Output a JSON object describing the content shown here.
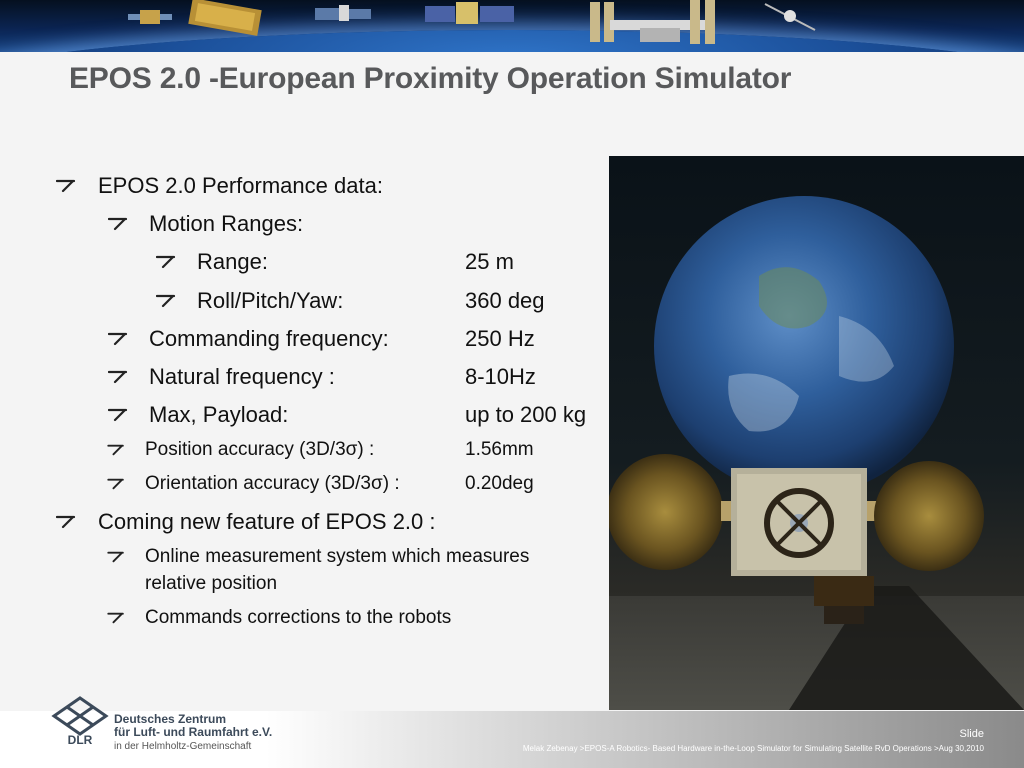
{
  "slide": {
    "title": "EPOS 2.0 -European Proximity Operation Simulator"
  },
  "bullets": {
    "performance": "EPOS 2.0 Performance data:",
    "motion_ranges": "Motion Ranges:",
    "range_label": "Range:",
    "range_value": "25 m",
    "rpy_label": "Roll/Pitch/Yaw:",
    "rpy_value": "360 deg",
    "cmd_freq_label": "Commanding frequency:",
    "cmd_freq_value": "250 Hz",
    "nat_freq_label": "Natural frequency :",
    "nat_freq_value": "8-10Hz",
    "payload_label": "Max, Payload:",
    "payload_value": "up to 200 kg",
    "pos_acc_prefix": "Position accuracy (3D/3",
    "pos_acc_suffix": ") :",
    "pos_acc_value": "1.56mm",
    "ori_acc_prefix": "Orientation accuracy (3D/3",
    "ori_acc_suffix": ") :",
    "ori_acc_value": "0.20deg",
    "sigma": "σ",
    "coming": "Coming new feature of EPOS 2.0 :",
    "online_line1": "Online measurement system which measures",
    "online_line2": "relative position",
    "corrections": "Commands corrections to the robots"
  },
  "footer": {
    "org_line1": "Deutsches Zentrum",
    "org_line2": "für Luft- und Raumfahrt e.V.",
    "org_line3": "in der Helmholtz-Gemeinschaft",
    "logo_text": "DLR",
    "slide_label": "Slide",
    "credit": "Melak Zebenay >EPOS-A Robotics- Based Hardware in-the-Loop Simulator for Simulating Satellite RvD Operations >Aug 30,2010"
  },
  "icons": {
    "bullet": "arrow-bullet-icon",
    "logo": "dlr-logo-icon"
  },
  "colors": {
    "title": "#58595b",
    "text": "#111111",
    "banner": "#0b2452"
  }
}
